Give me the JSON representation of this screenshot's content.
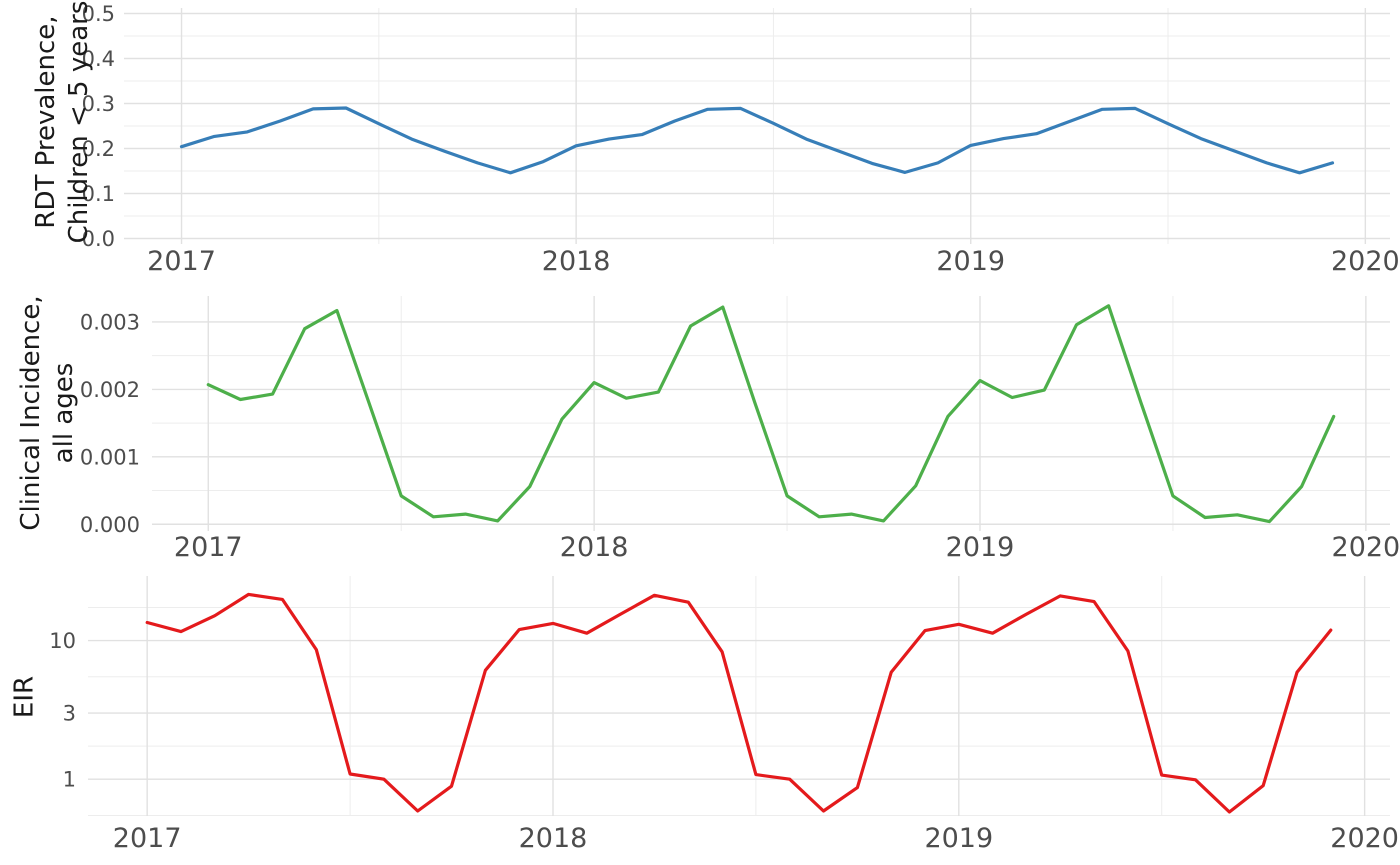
{
  "figure": {
    "background": "#ffffff",
    "description": "Three stacked monthly time-series panels, Jan 2017 to Dec 2019"
  },
  "axis": {
    "x_tick_labels": [
      "2017",
      "2018",
      "2019",
      "2020"
    ]
  },
  "chart_data": [
    {
      "id": "rdt_prevalence",
      "type": "line",
      "color": "#377EB8",
      "ylabel": [
        "RDT Prevalence,",
        "Children < 5 years"
      ],
      "yscale": "linear",
      "ylim": [
        -0.0122,
        0.5122
      ],
      "grid": true,
      "y_ticks": [
        {
          "v": 0.0,
          "label": "0.0"
        },
        {
          "v": 0.1,
          "label": "0.1"
        },
        {
          "v": 0.2,
          "label": "0.2"
        },
        {
          "v": 0.3,
          "label": "0.3"
        },
        {
          "v": 0.4,
          "label": "0.4"
        },
        {
          "v": 0.5,
          "label": "0.5"
        }
      ],
      "y_minor": [
        0.05,
        0.15,
        0.25,
        0.35,
        0.45
      ],
      "x_ticks": [
        {
          "v": 2017,
          "label": "2017"
        },
        {
          "v": 2018,
          "label": "2018"
        },
        {
          "v": 2019,
          "label": "2019"
        },
        {
          "v": 2020,
          "label": "2020"
        }
      ],
      "x_minor": [
        2017.5,
        2018.5,
        2019.5
      ],
      "months": [
        "2017-01",
        "2017-02",
        "2017-03",
        "2017-04",
        "2017-05",
        "2017-06",
        "2017-07",
        "2017-08",
        "2017-09",
        "2017-10",
        "2017-11",
        "2017-12",
        "2018-01",
        "2018-02",
        "2018-03",
        "2018-04",
        "2018-05",
        "2018-06",
        "2018-07",
        "2018-08",
        "2018-09",
        "2018-10",
        "2018-11",
        "2018-12",
        "2019-01",
        "2019-02",
        "2019-03",
        "2019-04",
        "2019-05",
        "2019-06",
        "2019-07",
        "2019-08",
        "2019-09",
        "2019-10",
        "2019-11",
        "2019-12"
      ],
      "values": [
        0.204,
        0.227,
        0.237,
        0.261,
        0.288,
        0.29,
        0.255,
        0.221,
        0.194,
        0.168,
        0.146,
        0.171,
        0.206,
        0.221,
        0.231,
        0.261,
        0.287,
        0.289,
        0.256,
        0.221,
        0.194,
        0.167,
        0.147,
        0.168,
        0.207,
        0.222,
        0.233,
        0.26,
        0.287,
        0.289,
        0.255,
        0.222,
        0.195,
        0.168,
        0.146,
        0.168
      ]
    },
    {
      "id": "clinical_incidence",
      "type": "line",
      "color": "#4DAF4A",
      "ylabel": [
        "Clinical Incidence,",
        "all ages"
      ],
      "yscale": "linear",
      "ylim": [
        -0.0001,
        0.003385
      ],
      "grid": true,
      "y_ticks": [
        {
          "v": 0.0,
          "label": "0.000"
        },
        {
          "v": 0.001,
          "label": "0.001"
        },
        {
          "v": 0.002,
          "label": "0.002"
        },
        {
          "v": 0.003,
          "label": "0.003"
        }
      ],
      "y_minor": [
        0.0005,
        0.0015,
        0.0025
      ],
      "x_ticks": [
        {
          "v": 2017,
          "label": "2017"
        },
        {
          "v": 2018,
          "label": "2018"
        },
        {
          "v": 2019,
          "label": "2019"
        },
        {
          "v": 2020,
          "label": "2020"
        }
      ],
      "x_minor": [
        2017.5,
        2018.5,
        2019.5
      ],
      "months": [
        "2017-01",
        "2017-02",
        "2017-03",
        "2017-04",
        "2017-05",
        "2017-06",
        "2017-07",
        "2017-08",
        "2017-09",
        "2017-10",
        "2017-11",
        "2017-12",
        "2018-01",
        "2018-02",
        "2018-03",
        "2018-04",
        "2018-05",
        "2018-06",
        "2018-07",
        "2018-08",
        "2018-09",
        "2018-10",
        "2018-11",
        "2018-12",
        "2019-01",
        "2019-02",
        "2019-03",
        "2019-04",
        "2019-05",
        "2019-06",
        "2019-07",
        "2019-08",
        "2019-09",
        "2019-10",
        "2019-11",
        "2019-12"
      ],
      "values": [
        0.00207,
        0.00185,
        0.00193,
        0.0029,
        0.00317,
        0.0018,
        0.00042,
        0.00011,
        0.00015,
        5e-05,
        0.00056,
        0.00156,
        0.0021,
        0.00187,
        0.00196,
        0.00294,
        0.00322,
        0.0018,
        0.00042,
        0.00011,
        0.00015,
        5e-05,
        0.00057,
        0.0016,
        0.00213,
        0.00188,
        0.00199,
        0.00296,
        0.00324,
        0.00181,
        0.00042,
        0.0001,
        0.00014,
        4e-05,
        0.00056,
        0.0016
      ]
    },
    {
      "id": "eir",
      "type": "line",
      "color": "#E41A1C",
      "ylabel": [
        "EIR"
      ],
      "yscale": "log",
      "ylim": [
        0.543,
        29.2
      ],
      "grid": true,
      "y_ticks": [
        {
          "v": 1,
          "label": "1"
        },
        {
          "v": 3,
          "label": "3"
        },
        {
          "v": 10,
          "label": "10"
        }
      ],
      "y_minor": [
        0.5477,
        1.7321,
        5.4772,
        17.3205
      ],
      "x_ticks": [
        {
          "v": 2017,
          "label": "2017"
        },
        {
          "v": 2018,
          "label": "2018"
        },
        {
          "v": 2019,
          "label": "2019"
        },
        {
          "v": 2020,
          "label": "2020"
        }
      ],
      "x_minor": [
        2017.5,
        2018.5,
        2019.5
      ],
      "months": [
        "2017-01",
        "2017-02",
        "2017-03",
        "2017-04",
        "2017-05",
        "2017-06",
        "2017-07",
        "2017-08",
        "2017-09",
        "2017-10",
        "2017-11",
        "2017-12",
        "2018-01",
        "2018-02",
        "2018-03",
        "2018-04",
        "2018-05",
        "2018-06",
        "2018-07",
        "2018-08",
        "2018-09",
        "2018-10",
        "2018-11",
        "2018-12",
        "2019-01",
        "2019-02",
        "2019-03",
        "2019-04",
        "2019-05",
        "2019-06",
        "2019-07",
        "2019-08",
        "2019-09",
        "2019-10",
        "2019-11",
        "2019-12"
      ],
      "values": [
        13.5,
        11.6,
        15.1,
        21.5,
        19.8,
        8.6,
        1.09,
        1.0,
        0.59,
        0.89,
        6.1,
        12.0,
        13.3,
        11.3,
        15.5,
        21.2,
        18.9,
        8.3,
        1.08,
        1.0,
        0.59,
        0.87,
        5.9,
        11.8,
        13.1,
        11.3,
        15.5,
        21.0,
        19.1,
        8.4,
        1.07,
        0.99,
        0.58,
        0.9,
        5.9,
        11.9
      ]
    }
  ]
}
